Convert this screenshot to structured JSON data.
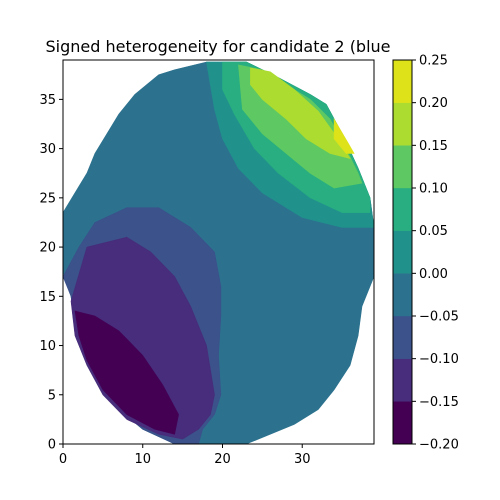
{
  "chart_data": {
    "type": "heatmap",
    "subtype": "filled-contour",
    "title": "Signed heterogeneity for candidate 2 (blue",
    "xlabel": "",
    "ylabel": "",
    "xlim": [
      0,
      39
    ],
    "ylim": [
      0,
      39
    ],
    "xticks": [
      0,
      10,
      20,
      30
    ],
    "yticks": [
      0,
      5,
      10,
      15,
      20,
      25,
      30,
      35
    ],
    "grid": false,
    "colorbar": {
      "location": "right",
      "levels": [
        -0.2,
        -0.15,
        -0.1,
        -0.05,
        0.0,
        0.05,
        0.1,
        0.15,
        0.2,
        0.25
      ],
      "tick_labels": [
        "−0.20",
        "−0.15",
        "−0.10",
        "−0.05",
        "0.00",
        "0.05",
        "0.10",
        "0.15",
        "0.20",
        "0.25"
      ],
      "colors": [
        "#440154",
        "#472d7b",
        "#3b528b",
        "#2c728e",
        "#21918c",
        "#28ae80",
        "#5ec962",
        "#addc30",
        "#dde318"
      ]
    },
    "regions": [
      {
        "level_range": [
          -0.05,
          0.0
        ],
        "color": "#2c728e",
        "points": [
          [
            0,
            17.5
          ],
          [
            0,
            23.5
          ],
          [
            3,
            27.5
          ],
          [
            4,
            29.5
          ],
          [
            7,
            33.5
          ],
          [
            9,
            35.5
          ],
          [
            12,
            37.5
          ],
          [
            14,
            38
          ],
          [
            18,
            38.8
          ],
          [
            23,
            38.8
          ],
          [
            27,
            37.2
          ],
          [
            31,
            35.5
          ],
          [
            33,
            34.5
          ],
          [
            35,
            31.5
          ],
          [
            37,
            28
          ],
          [
            38.5,
            25
          ],
          [
            39,
            22
          ],
          [
            39,
            17
          ],
          [
            37.5,
            14
          ],
          [
            37,
            11
          ],
          [
            36,
            8
          ],
          [
            34,
            5.5
          ],
          [
            32,
            3.5
          ],
          [
            29,
            2
          ],
          [
            26,
            1
          ],
          [
            23,
            0
          ],
          [
            14,
            0
          ],
          [
            10,
            1.5
          ],
          [
            7,
            3.5
          ],
          [
            4.5,
            6
          ],
          [
            3,
            9
          ],
          [
            1.5,
            12
          ],
          [
            1,
            15
          ]
        ]
      },
      {
        "level_range": [
          -0.1,
          -0.05
        ],
        "color": "#3b528b",
        "points": [
          [
            0,
            17
          ],
          [
            2,
            20
          ],
          [
            4,
            22.5
          ],
          [
            8,
            24
          ],
          [
            12,
            24
          ],
          [
            16,
            22
          ],
          [
            19,
            19.5
          ],
          [
            19.8,
            16
          ],
          [
            19.8,
            13
          ],
          [
            19.5,
            9
          ],
          [
            19.8,
            5
          ],
          [
            19,
            3
          ],
          [
            17.5,
            1.5
          ],
          [
            17,
            0
          ],
          [
            14,
            0
          ],
          [
            10,
            1.5
          ],
          [
            7,
            3.5
          ],
          [
            4.5,
            6
          ],
          [
            3,
            9
          ],
          [
            1.5,
            12
          ],
          [
            1,
            15
          ]
        ]
      },
      {
        "level_range": [
          -0.15,
          -0.1
        ],
        "color": "#472d7b",
        "points": [
          [
            1,
            14.5
          ],
          [
            3,
            20
          ],
          [
            8,
            21
          ],
          [
            11,
            19.5
          ],
          [
            14,
            17
          ],
          [
            16,
            14
          ],
          [
            18,
            10
          ],
          [
            19,
            5
          ],
          [
            18.5,
            3
          ],
          [
            17,
            1.5
          ],
          [
            15,
            0.5
          ],
          [
            12,
            1
          ],
          [
            8,
            2.5
          ],
          [
            5,
            5
          ],
          [
            3,
            8
          ],
          [
            1.5,
            11
          ]
        ]
      },
      {
        "level_range": [
          -0.2,
          -0.15
        ],
        "color": "#440154",
        "points": [
          [
            1.5,
            13.5
          ],
          [
            4,
            13
          ],
          [
            7,
            11.5
          ],
          [
            10,
            9
          ],
          [
            12.5,
            6
          ],
          [
            14.5,
            3
          ],
          [
            14,
            1
          ],
          [
            11.5,
            1.5
          ],
          [
            8,
            3
          ],
          [
            5,
            5.5
          ],
          [
            3,
            8.5
          ],
          [
            2,
            11
          ]
        ]
      },
      {
        "level_range": [
          0.0,
          0.05
        ],
        "color": "#21918c",
        "points": [
          [
            18,
            38.8
          ],
          [
            23,
            38.8
          ],
          [
            27,
            37.2
          ],
          [
            31,
            35.5
          ],
          [
            33,
            34.5
          ],
          [
            35,
            31.5
          ],
          [
            37,
            28
          ],
          [
            38.5,
            25
          ],
          [
            39,
            22
          ],
          [
            35,
            22
          ],
          [
            30,
            23
          ],
          [
            25,
            25.5
          ],
          [
            22,
            28
          ],
          [
            20,
            31
          ],
          [
            19,
            34
          ]
        ]
      },
      {
        "level_range": [
          0.05,
          0.1
        ],
        "color": "#28ae80",
        "points": [
          [
            20,
            38.8
          ],
          [
            23,
            38.8
          ],
          [
            27,
            37.2
          ],
          [
            31,
            35.5
          ],
          [
            33,
            34.5
          ],
          [
            35,
            31.5
          ],
          [
            37,
            28
          ],
          [
            38.5,
            25
          ],
          [
            38.5,
            23.5
          ],
          [
            35,
            23.5
          ],
          [
            31,
            25
          ],
          [
            27,
            27.5
          ],
          [
            24,
            30
          ],
          [
            21.5,
            33.5
          ],
          [
            20,
            36
          ]
        ]
      },
      {
        "level_range": [
          0.1,
          0.15
        ],
        "color": "#5ec962",
        "points": [
          [
            22,
            38.5
          ],
          [
            25,
            38
          ],
          [
            28,
            36.5
          ],
          [
            31,
            35
          ],
          [
            33.5,
            33
          ],
          [
            35.5,
            30
          ],
          [
            37,
            27.5
          ],
          [
            37.5,
            26.5
          ],
          [
            34,
            26
          ],
          [
            31,
            27.5
          ],
          [
            28,
            29.5
          ],
          [
            25,
            31.5
          ],
          [
            22.5,
            34
          ]
        ]
      },
      {
        "level_range": [
          0.15,
          0.2
        ],
        "color": "#addc30",
        "points": [
          [
            23.5,
            38.2
          ],
          [
            26,
            37.8
          ],
          [
            29,
            36
          ],
          [
            32,
            33.8
          ],
          [
            34.5,
            31
          ],
          [
            36,
            29
          ],
          [
            33.5,
            29.5
          ],
          [
            30.5,
            31
          ],
          [
            28,
            33
          ],
          [
            25,
            35
          ],
          [
            23.5,
            36.5
          ]
        ]
      },
      {
        "level_range": [
          0.2,
          0.25
        ],
        "color": "#dde318",
        "points": [
          [
            34,
            33
          ],
          [
            35.8,
            30.5
          ],
          [
            36.5,
            29.5
          ],
          [
            35.5,
            29.5
          ],
          [
            34,
            31
          ]
        ]
      }
    ]
  }
}
